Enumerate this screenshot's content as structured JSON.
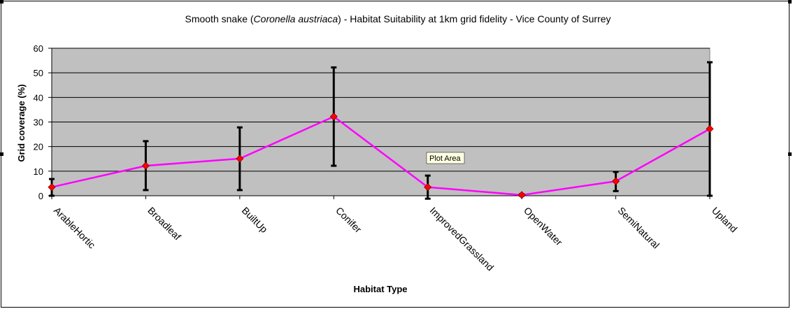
{
  "chart_data": {
    "type": "line",
    "title_parts": [
      {
        "text": "Smooth snake (",
        "italic": false
      },
      {
        "text": "Coronella austriaca",
        "italic": true
      },
      {
        "text": ") - Habitat Suitability at 1km grid fidelity - Vice County of Surrey",
        "italic": false
      }
    ],
    "xlabel": "Habitat Type",
    "ylabel": "Grid coverage (%)",
    "ylim": [
      0,
      60
    ],
    "yticks": [
      0,
      10,
      20,
      30,
      40,
      50,
      60
    ],
    "categories": [
      "ArableHortic",
      "Broadleaf",
      "BuiltUp",
      "Conifer",
      "ImprovedGrassland",
      "OpenWater",
      "SemiNatural",
      "Upland"
    ],
    "series": [
      {
        "values": [
          3.5,
          12.2,
          15.1,
          32.2,
          3.5,
          0.3,
          5.9,
          27.2
        ],
        "error_low": [
          0,
          2.3,
          2.3,
          12.2,
          -1.2,
          0,
          1.9,
          0
        ],
        "error_high": [
          6.8,
          22.2,
          27.8,
          52.2,
          8.2,
          0.6,
          9.7,
          54.3
        ]
      }
    ],
    "grid": true,
    "legend": "none",
    "annotation": "Plot Area",
    "colors": {
      "plot_background": "#c0c0c0",
      "line": "#ff00ff",
      "marker": "#ff0000",
      "error_bar": "#000000",
      "gridline": "#000000"
    }
  }
}
